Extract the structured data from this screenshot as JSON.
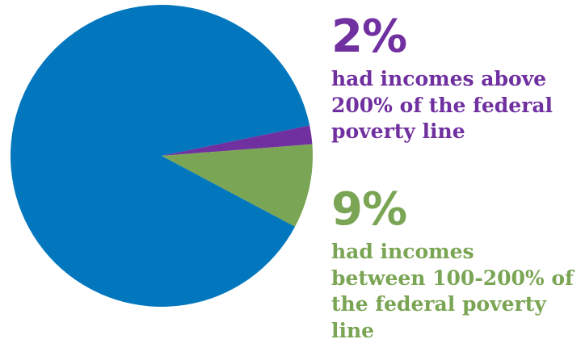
{
  "chart_data": {
    "type": "pie",
    "slices": [
      {
        "value": 89,
        "color": "#0277be"
      },
      {
        "value": 2,
        "color": "#7030a0",
        "label": "2%",
        "description": "had incomes above 200% of the federal poverty line"
      },
      {
        "value": 9,
        "color": "#7aa554",
        "label": "9%",
        "description": "had incomes between 100-200% of the federal poverty line"
      }
    ]
  }
}
